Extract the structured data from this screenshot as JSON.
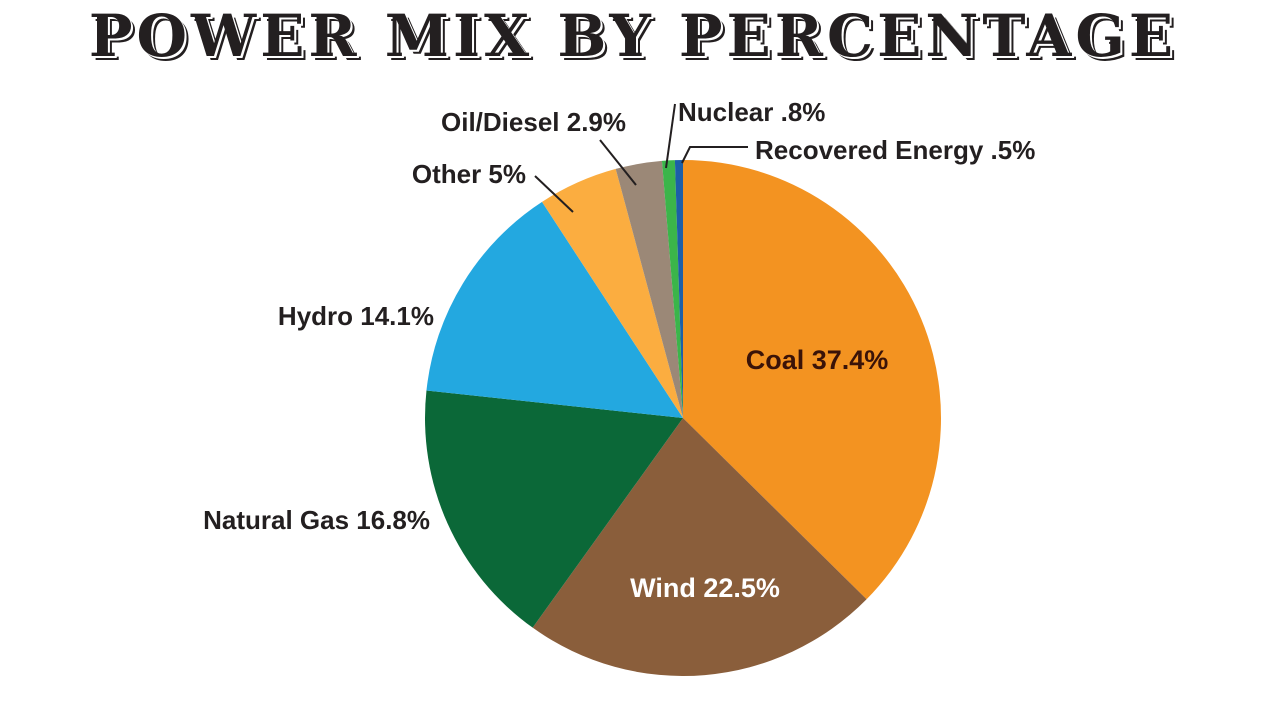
{
  "title": "POWER MIX BY PERCENTAGE",
  "chart_data": {
    "type": "pie",
    "title": "POWER MIX BY PERCENTAGE",
    "unit": "%",
    "slices": [
      {
        "label": "Coal 37.4%",
        "name": "Coal",
        "value": 37.4,
        "color": "#f39321",
        "label_color": "#3a1308"
      },
      {
        "label": "Wind 22.5%",
        "name": "Wind",
        "value": 22.5,
        "color": "#8a5e3b",
        "label_color": "#ffffff"
      },
      {
        "label": "Natural Gas 16.8%",
        "name": "Natural Gas",
        "value": 16.8,
        "color": "#0b6838",
        "label_color": "#231f20"
      },
      {
        "label": "Hydro 14.1%",
        "name": "Hydro",
        "value": 14.1,
        "color": "#23a8e0",
        "label_color": "#231f20"
      },
      {
        "label": "Other 5%",
        "name": "Other",
        "value": 5,
        "color": "#fbad40",
        "label_color": "#231f20"
      },
      {
        "label": "Oil/Diesel 2.9%",
        "name": "Oil/Diesel",
        "value": 2.9,
        "color": "#9b8877",
        "label_color": "#231f20"
      },
      {
        "label": "Nuclear .8%",
        "name": "Nuclear",
        "value": 0.8,
        "color": "#3bb54a",
        "label_color": "#231f20"
      },
      {
        "label": "Recovered Energy .5%",
        "name": "Recovered Energy",
        "value": 0.5,
        "color": "#1c5fa8",
        "label_color": "#231f20"
      }
    ]
  }
}
